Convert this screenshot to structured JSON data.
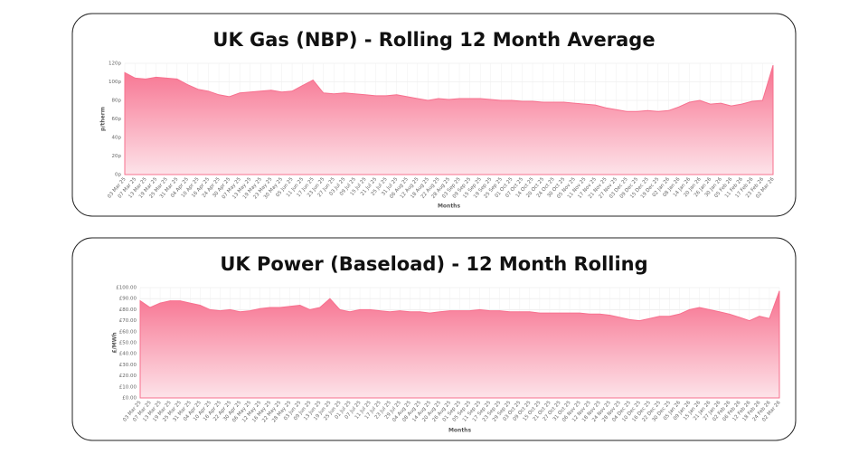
{
  "chart_data": [
    {
      "type": "area",
      "title": "UK Gas (NBP) - Rolling 12 Month Average",
      "x_label": "Months",
      "y_label": "p/therm",
      "color": "#f7708e",
      "grid": true,
      "categories": [
        "03 Mar 25",
        "07 Mar 25",
        "13 Mar 25",
        "19 Mar 25",
        "25 Mar 25",
        "31 Mar 25",
        "04 Apr 25",
        "10 Apr 25",
        "16 Apr 25",
        "24 Apr 25",
        "30 Apr 25",
        "07 May 25",
        "13 May 25",
        "19 May 25",
        "23 May 25",
        "30 May 25",
        "05 Jun 25",
        "11 Jun 25",
        "17 Jun 25",
        "23 Jun 25",
        "27 Jun 25",
        "03 Jul 25",
        "09 Jul 25",
        "15 Jul 25",
        "21 Jul 25",
        "25 Jul 25",
        "31 Jul 25",
        "06 Aug 25",
        "12 Aug 25",
        "18 Aug 25",
        "22 Aug 25",
        "28 Aug 25",
        "03 Sep 25",
        "09 Sep 25",
        "15 Sep 25",
        "19 Sep 25",
        "25 Sep 25",
        "01 Oct 25",
        "07 Oct 25",
        "14 Oct 25",
        "20 Oct 25",
        "24 Oct 25",
        "30 Oct 25",
        "05 Nov 25",
        "11 Nov 25",
        "17 Nov 25",
        "21 Nov 25",
        "27 Nov 25",
        "03 Dec 25",
        "09 Dec 25",
        "15 Dec 25",
        "19 Dec 25",
        "02 Jan 26",
        "08 Jan 26",
        "14 Jan 26",
        "20 Jan 26",
        "26 Jan 26",
        "30 Jan 26",
        "05 Feb 26",
        "11 Feb 26",
        "17 Feb 26",
        "23 Feb 26",
        "02 Mar 26"
      ],
      "values": [
        110,
        104,
        103,
        105,
        104,
        103,
        97,
        92,
        90,
        86,
        84,
        88,
        89,
        90,
        91,
        89,
        90,
        96,
        102,
        88,
        87,
        88,
        87,
        86,
        85,
        85,
        86,
        84,
        82,
        80,
        82,
        81,
        82,
        82,
        82,
        81,
        80,
        80,
        79,
        79,
        78,
        78,
        78,
        77,
        76,
        75,
        72,
        70,
        68,
        68,
        69,
        68,
        69,
        73,
        78,
        80,
        76,
        77,
        74,
        76,
        79,
        80,
        118
      ],
      "ylim": [
        0,
        120
      ],
      "yticks": [
        {
          "value": 0,
          "label": "0p"
        },
        {
          "value": 20,
          "label": "20p"
        },
        {
          "value": 40,
          "label": "40p"
        },
        {
          "value": 60,
          "label": "60p"
        },
        {
          "value": 80,
          "label": "80p"
        },
        {
          "value": 100,
          "label": "100p"
        },
        {
          "value": 120,
          "label": "120p"
        }
      ]
    },
    {
      "type": "area",
      "title": "UK Power (Baseload) - 12 Month Rolling",
      "x_label": "Months",
      "y_label": "£/MWh",
      "color": "#f7708e",
      "grid": true,
      "categories": [
        "03 Mar 25",
        "07 Mar 25",
        "13 Mar 25",
        "19 Mar 25",
        "25 Mar 25",
        "31 Mar 25",
        "04 Apr 25",
        "10 Apr 25",
        "16 Apr 25",
        "22 Apr 25",
        "30 Apr 25",
        "06 May 25",
        "12 May 25",
        "16 May 25",
        "22 May 25",
        "28 May 25",
        "03 Jun 25",
        "09 Jun 25",
        "13 Jun 25",
        "19 Jun 25",
        "25 Jun 25",
        "01 Jul 25",
        "07 Jul 25",
        "11 Jul 25",
        "17 Jul 25",
        "23 Jul 25",
        "29 Jul 25",
        "04 Aug 25",
        "08 Aug 25",
        "14 Aug 25",
        "20 Aug 25",
        "26 Aug 25",
        "01 Sep 25",
        "05 Sep 25",
        "11 Sep 25",
        "17 Sep 25",
        "23 Sep 25",
        "29 Sep 25",
        "03 Oct 25",
        "09 Oct 25",
        "15 Oct 25",
        "21 Oct 25",
        "27 Oct 25",
        "31 Oct 25",
        "06 Nov 25",
        "12 Nov 25",
        "18 Nov 25",
        "24 Nov 25",
        "28 Nov 25",
        "04 Dec 25",
        "10 Dec 25",
        "16 Dec 25",
        "22 Dec 25",
        "30 Dec 25",
        "05 Jan 26",
        "09 Jan 26",
        "15 Jan 26",
        "21 Jan 26",
        "27 Jan 26",
        "02 Feb 26",
        "06 Feb 26",
        "12 Feb 26",
        "18 Feb 26",
        "24 Feb 26",
        "02 Mar 26"
      ],
      "values": [
        88,
        82,
        86,
        88,
        88,
        86,
        84,
        80,
        79,
        80,
        78,
        79,
        81,
        82,
        82,
        83,
        84,
        80,
        82,
        90,
        80,
        78,
        80,
        80,
        79,
        78,
        79,
        78,
        78,
        77,
        78,
        79,
        79,
        79,
        80,
        79,
        79,
        78,
        78,
        78,
        77,
        77,
        77,
        77,
        77,
        76,
        76,
        75,
        73,
        71,
        70,
        72,
        74,
        74,
        76,
        80,
        82,
        80,
        78,
        76,
        73,
        70,
        74,
        72,
        97
      ],
      "ylim": [
        0,
        100
      ],
      "yticks": [
        {
          "value": 0,
          "label": "£0.00"
        },
        {
          "value": 10,
          "label": "£10.00"
        },
        {
          "value": 20,
          "label": "£20.00"
        },
        {
          "value": 30,
          "label": "£30.00"
        },
        {
          "value": 40,
          "label": "£40.00"
        },
        {
          "value": 50,
          "label": "£50.00"
        },
        {
          "value": 60,
          "label": "£60.00"
        },
        {
          "value": 70,
          "label": "£70.00"
        },
        {
          "value": 80,
          "label": "£80.00"
        },
        {
          "value": 90,
          "label": "£90.00"
        },
        {
          "value": 100,
          "label": "£100.00"
        }
      ]
    }
  ]
}
